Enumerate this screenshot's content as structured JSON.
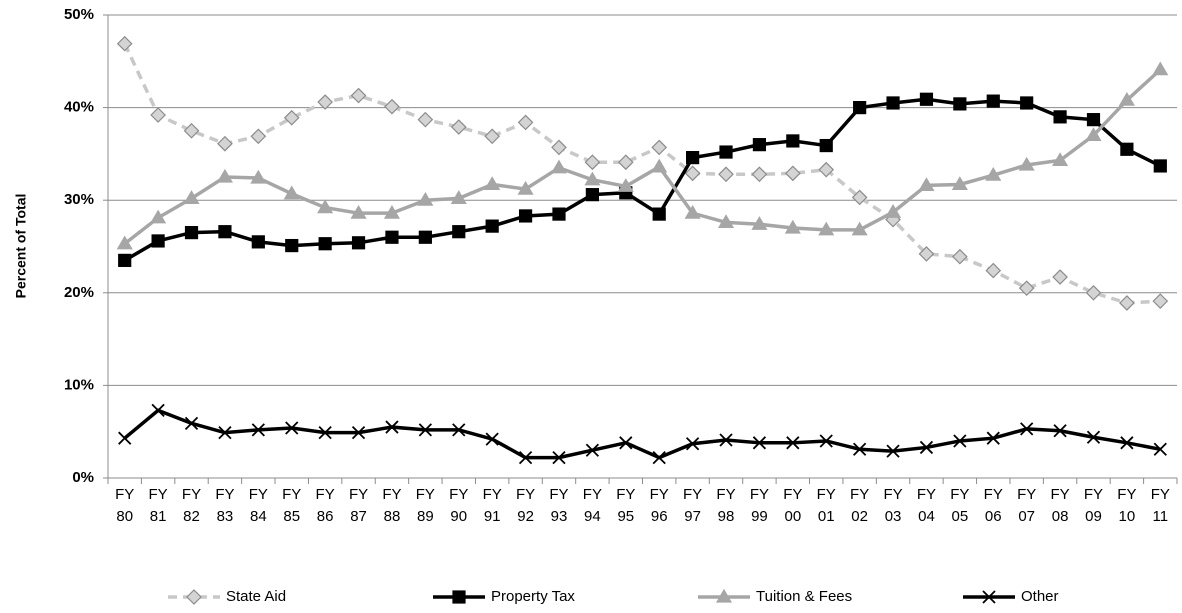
{
  "chart_data": {
    "type": "line",
    "y_label": "Percent of Total",
    "categories": [
      "FY 80",
      "FY 81",
      "FY 82",
      "FY 83",
      "FY 84",
      "FY 85",
      "FY 86",
      "FY 87",
      "FY 88",
      "FY 89",
      "FY 90",
      "FY 91",
      "FY 92",
      "FY 93",
      "FY 94",
      "FY 95",
      "FY 96",
      "FY 97",
      "FY 98",
      "FY 99",
      "FY 00",
      "FY 01",
      "FY 02",
      "FY 03",
      "FY 04",
      "FY 05",
      "FY 06",
      "FY 07",
      "FY 08",
      "FY 09",
      "FY 10",
      "FY 11"
    ],
    "series": [
      {
        "name": "State Aid",
        "color": "#c8c8c8",
        "marker_fill": "#d4d4d4",
        "marker_stroke": "#8c8c8c",
        "marker": "diamond",
        "dashed": true,
        "values": [
          46.9,
          39.2,
          37.5,
          36.1,
          36.9,
          38.9,
          40.6,
          41.3,
          40.1,
          38.7,
          37.9,
          36.9,
          38.4,
          35.7,
          34.1,
          34.1,
          35.7,
          32.9,
          32.8,
          32.8,
          32.9,
          33.3,
          30.3,
          27.9,
          24.2,
          23.9,
          22.4,
          20.5,
          21.7,
          20.0,
          18.9,
          19.1
        ]
      },
      {
        "name": "Property Tax",
        "color": "#000000",
        "marker_fill": "#000000",
        "marker_stroke": "#000000",
        "marker": "square",
        "dashed": false,
        "values": [
          23.5,
          25.6,
          26.5,
          26.6,
          25.5,
          25.1,
          25.3,
          25.4,
          26.0,
          26.0,
          26.6,
          27.2,
          28.3,
          28.5,
          30.6,
          30.8,
          28.5,
          34.6,
          35.2,
          36.0,
          36.4,
          35.9,
          40.0,
          40.5,
          40.9,
          40.4,
          40.7,
          40.5,
          39.0,
          38.7,
          35.5,
          33.7
        ]
      },
      {
        "name": "Tuition & Fees",
        "color": "#a6a6a6",
        "marker_fill": "#a6a6a6",
        "marker_stroke": "#a6a6a6",
        "marker": "triangle",
        "dashed": false,
        "values": [
          25.3,
          28.1,
          30.2,
          32.5,
          32.4,
          30.7,
          29.2,
          28.6,
          28.6,
          30.0,
          30.2,
          31.7,
          31.2,
          33.5,
          32.2,
          31.5,
          33.6,
          28.6,
          27.6,
          27.4,
          27.0,
          26.8,
          26.8,
          28.7,
          31.6,
          31.7,
          32.7,
          33.8,
          34.3,
          37.0,
          40.8,
          44.1
        ]
      },
      {
        "name": "Other",
        "color": "#000000",
        "marker_fill": "none",
        "marker_stroke": "#000000",
        "marker": "x",
        "dashed": false,
        "values": [
          4.3,
          7.3,
          5.9,
          4.9,
          5.2,
          5.4,
          4.9,
          4.9,
          5.5,
          5.2,
          5.2,
          4.2,
          2.2,
          2.2,
          3.0,
          3.8,
          2.2,
          3.7,
          4.1,
          3.8,
          3.8,
          4.0,
          3.1,
          2.9,
          3.3,
          4.0,
          4.3,
          5.3,
          5.1,
          4.4,
          3.8,
          3.1
        ]
      }
    ],
    "ylim": [
      0,
      50
    ],
    "yticks": [
      {
        "value": 0,
        "label": "0%"
      },
      {
        "value": 10,
        "label": "10%"
      },
      {
        "value": 20,
        "label": "20%"
      },
      {
        "value": 30,
        "label": "30%"
      },
      {
        "value": 40,
        "label": "40%"
      },
      {
        "value": 50,
        "label": "50%"
      }
    ],
    "grid": true,
    "legend": "bottom"
  }
}
